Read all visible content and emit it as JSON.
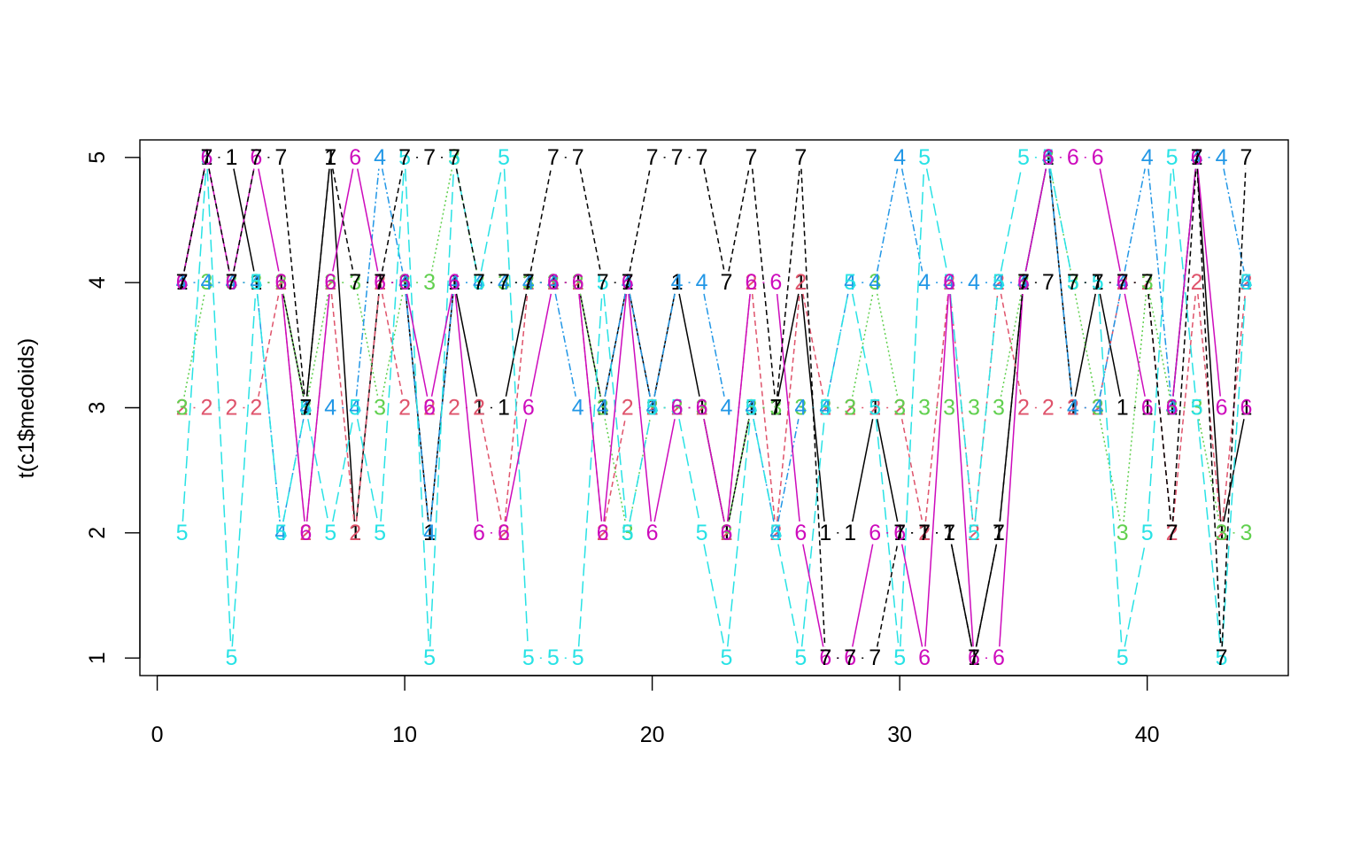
{
  "chart_data": {
    "type": "line",
    "title": "",
    "xlabel": "",
    "ylabel": "t(c1$medoids)",
    "xlim": [
      -0.7,
      45.7
    ],
    "ylim": [
      0.86,
      5.14
    ],
    "xticks": [
      0,
      10,
      20,
      30,
      40
    ],
    "yticks": [
      1,
      2,
      3,
      4,
      5
    ],
    "grid": false,
    "legend": "none",
    "x": [
      1,
      2,
      3,
      4,
      5,
      6,
      7,
      8,
      9,
      10,
      11,
      12,
      13,
      14,
      15,
      16,
      17,
      18,
      19,
      20,
      21,
      22,
      23,
      24,
      25,
      26,
      27,
      28,
      29,
      30,
      31,
      32,
      33,
      34,
      35,
      36,
      37,
      38,
      39,
      40,
      41,
      42,
      43,
      44
    ],
    "series": [
      {
        "label": "1",
        "color": "#000000",
        "dash": "solid",
        "values": [
          4,
          5,
          5,
          4,
          4,
          3,
          5,
          2,
          4,
          4,
          2,
          4,
          3,
          3,
          4,
          4,
          4,
          3,
          4,
          3,
          4,
          3,
          2,
          3,
          3,
          4,
          2,
          2,
          3,
          2,
          2,
          2,
          1,
          2,
          4,
          5,
          3,
          4,
          3,
          3,
          3,
          5,
          2,
          3
        ]
      },
      {
        "label": "2",
        "color": "#DF536B",
        "dash": "6 4",
        "values": [
          3,
          3,
          3,
          3,
          4,
          2,
          4,
          2,
          4,
          3,
          3,
          3,
          3,
          2,
          4,
          4,
          4,
          2,
          3,
          3,
          3,
          3,
          2,
          4,
          2,
          4,
          3,
          3,
          3,
          3,
          2,
          4,
          2,
          4,
          3,
          3,
          3,
          3,
          4,
          4,
          2,
          4,
          2,
          4
        ]
      },
      {
        "label": "3",
        "color": "#61D04F",
        "dash": "2 3",
        "values": [
          3,
          4,
          4,
          4,
          4,
          3,
          4,
          4,
          3,
          4,
          4,
          5,
          4,
          4,
          4,
          4,
          4,
          3,
          2,
          3,
          3,
          3,
          2,
          3,
          3,
          3,
          3,
          3,
          4,
          3,
          3,
          3,
          3,
          3,
          4,
          5,
          4,
          3,
          2,
          4,
          3,
          3,
          2,
          2
        ]
      },
      {
        "label": "4",
        "color": "#2297E6",
        "dash": "8 3 2 3",
        "values": [
          4,
          4,
          4,
          4,
          2,
          3,
          3,
          3,
          5,
          4,
          2,
          4,
          4,
          4,
          4,
          4,
          3,
          3,
          4,
          3,
          4,
          4,
          3,
          3,
          2,
          3,
          3,
          4,
          4,
          5,
          4,
          4,
          4,
          4,
          4,
          5,
          3,
          3,
          4,
          5,
          3,
          5,
          5,
          4
        ]
      },
      {
        "label": "5",
        "color": "#28E2E5",
        "dash": "14 6",
        "values": [
          2,
          5,
          1,
          4,
          2,
          3,
          2,
          3,
          2,
          5,
          1,
          5,
          4,
          5,
          1,
          1,
          1,
          4,
          2,
          3,
          3,
          2,
          1,
          3,
          2,
          1,
          3,
          4,
          3,
          1,
          5,
          4,
          2,
          4,
          5,
          5,
          4,
          4,
          1,
          2,
          5,
          3,
          1,
          4
        ]
      },
      {
        "label": "6",
        "color": "#CD0BBC",
        "dash": "solid",
        "values": [
          4,
          5,
          4,
          5,
          4,
          2,
          4,
          5,
          4,
          4,
          3,
          4,
          2,
          2,
          3,
          4,
          4,
          2,
          4,
          2,
          3,
          3,
          2,
          4,
          4,
          2,
          1,
          1,
          2,
          2,
          1,
          4,
          1,
          1,
          4,
          5,
          5,
          5,
          4,
          3,
          3,
          5,
          3,
          3
        ]
      },
      {
        "label": "7",
        "color": "#000000",
        "dash": "6 4",
        "values": [
          4,
          5,
          4,
          5,
          5,
          3,
          5,
          4,
          4,
          5,
          5,
          5,
          4,
          4,
          4,
          5,
          5,
          4,
          4,
          5,
          5,
          5,
          4,
          5,
          3,
          5,
          1,
          1,
          1,
          2,
          2,
          2,
          1,
          2,
          4,
          4,
          4,
          4,
          4,
          4,
          2,
          5,
          1,
          5
        ]
      }
    ]
  }
}
